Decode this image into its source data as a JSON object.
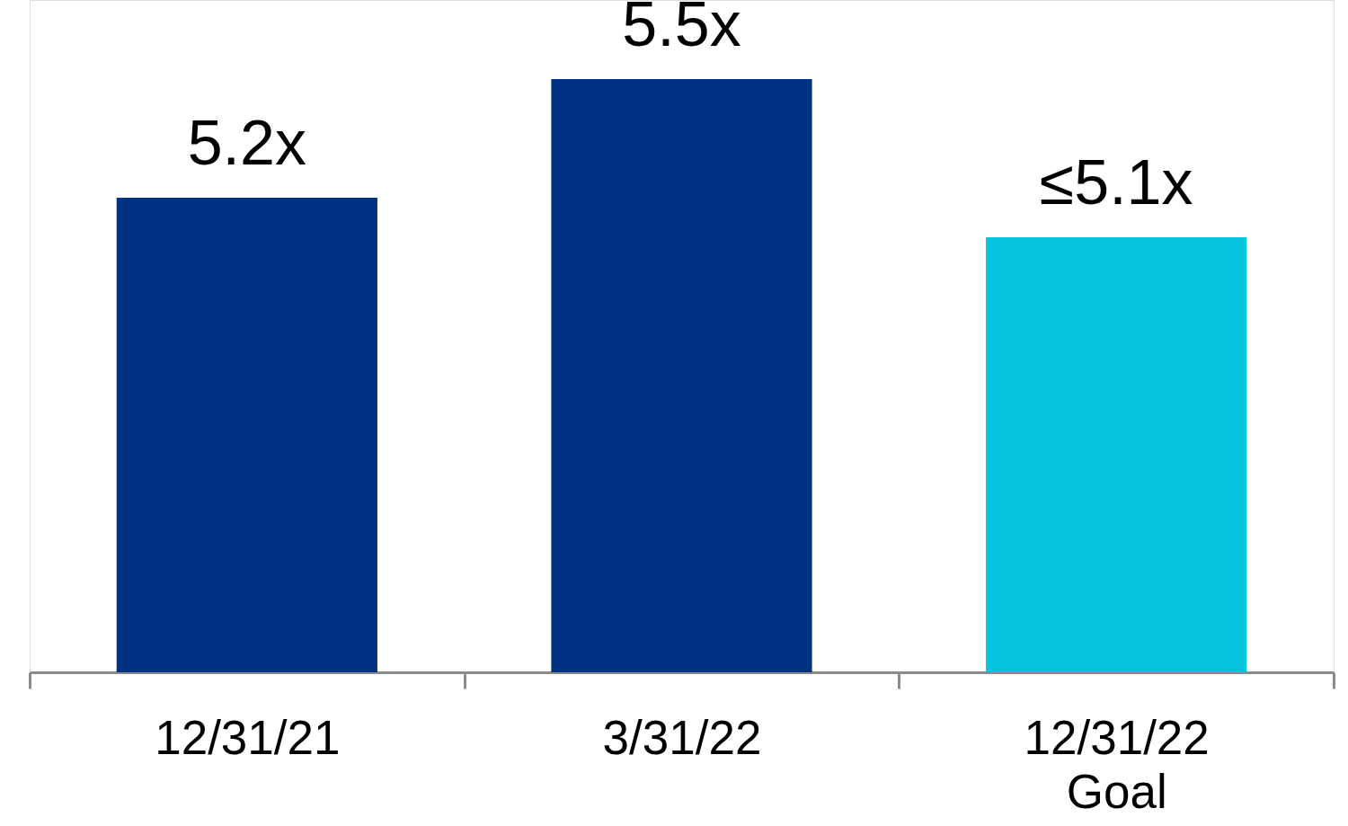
{
  "chart_data": {
    "type": "bar",
    "categories": [
      "12/31/21",
      "3/31/22",
      "12/31/22\nGoal"
    ],
    "values": [
      5.2,
      5.5,
      5.1
    ],
    "value_labels": [
      "5.2x",
      "5.5x",
      "≤5.1x"
    ],
    "colors": [
      "#003082",
      "#003082",
      "#05c3dd"
    ],
    "ylim": [
      4,
      5.7
    ],
    "tick_labels": "x",
    "grid": false,
    "legend": false
  }
}
